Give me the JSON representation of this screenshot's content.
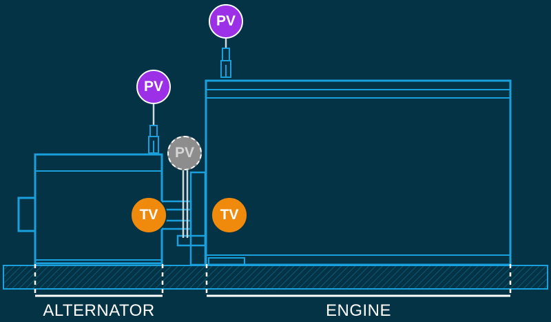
{
  "labels": {
    "alternator": "ALTERNATOR",
    "engine": "ENGINE"
  },
  "sensors": {
    "pv_engine_top": "PV",
    "pv_alternator_top": "PV",
    "pv_coupling": "PV",
    "tv_alternator": "TV",
    "tv_engine": "TV"
  },
  "colors": {
    "background": "#043346",
    "outline": "#1aa0dc",
    "pv": "#9b30e6",
    "pv_inactive": "#8d8d8d",
    "tv": "#f08a0c",
    "label": "#ffffff"
  }
}
